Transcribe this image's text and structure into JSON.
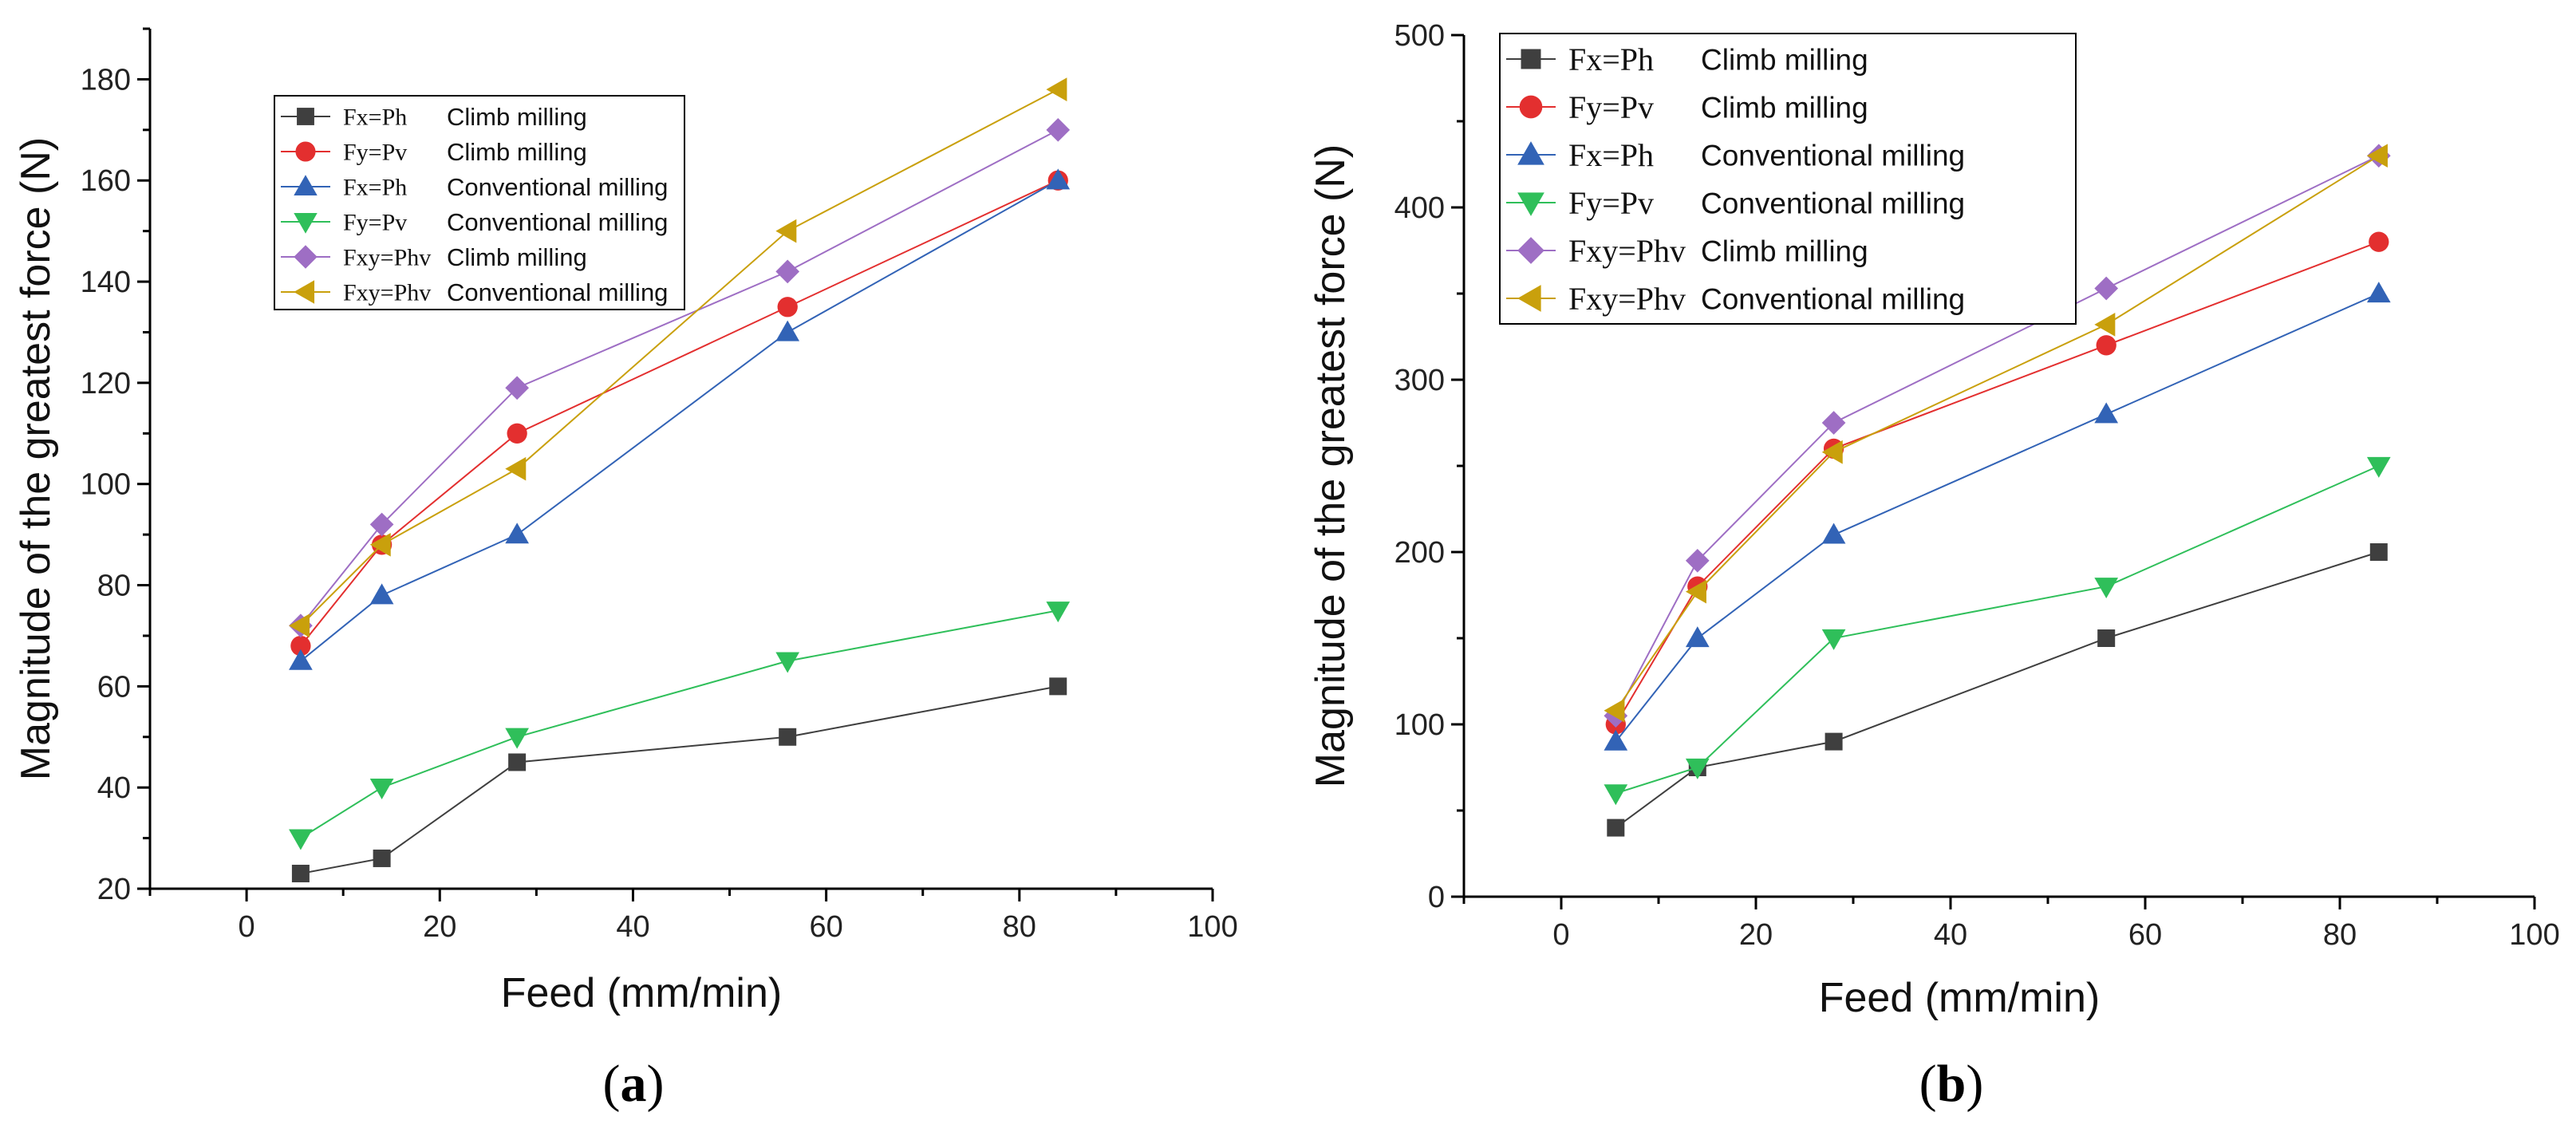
{
  "chart_data": [
    {
      "type": "line",
      "panel_label": "a",
      "xlabel": "Feed (mm/min)",
      "ylabel": "Magnitude of the greatest force  (N)",
      "xlim": [
        -10,
        100
      ],
      "ylim": [
        20,
        190
      ],
      "xticks": [
        0,
        20,
        40,
        60,
        80,
        100
      ],
      "yticks": [
        20,
        40,
        60,
        80,
        100,
        120,
        140,
        160,
        180
      ],
      "x": [
        5.6,
        14,
        28,
        56,
        84
      ],
      "legend_position": "top-left",
      "series": [
        {
          "symbol": "Fx=Ph",
          "description": "Climb milling",
          "color": "#3f3f3f",
          "marker": "square",
          "values": [
            23,
            26,
            45,
            50,
            60
          ]
        },
        {
          "symbol": "Fy=Pv",
          "description": "Climb milling",
          "color": "#e32f2f",
          "marker": "circle",
          "values": [
            68,
            88,
            110,
            135,
            160
          ]
        },
        {
          "symbol": "Fx=Ph",
          "description": "Conventional milling",
          "color": "#3263b6",
          "marker": "triangle-up",
          "values": [
            65,
            78,
            90,
            130,
            160
          ]
        },
        {
          "symbol": "Fy=Pv",
          "description": "Conventional milling",
          "color": "#2fbf5a",
          "marker": "triangle-down",
          "values": [
            30,
            40,
            50,
            65,
            75
          ]
        },
        {
          "symbol": "Fxy=Phv",
          "description": "Climb milling",
          "color": "#9e6ec4",
          "marker": "diamond",
          "values": [
            72,
            92,
            119,
            142,
            170
          ]
        },
        {
          "symbol": "Fxy=Phv",
          "description": "Conventional milling",
          "color": "#c9a00c",
          "marker": "triangle-left",
          "values": [
            72,
            88,
            103,
            150,
            178
          ]
        }
      ]
    },
    {
      "type": "line",
      "panel_label": "b",
      "xlabel": "Feed (mm/min)",
      "ylabel": "Magnitude of the greatest force  (N)",
      "xlim": [
        -10,
        100
      ],
      "ylim": [
        0,
        500
      ],
      "xticks": [
        0,
        20,
        40,
        60,
        80,
        100
      ],
      "yticks": [
        0,
        100,
        200,
        300,
        400,
        500
      ],
      "x": [
        5.6,
        14,
        28,
        56,
        84
      ],
      "legend_position": "top-left",
      "series": [
        {
          "symbol": "Fx=Ph",
          "description": "Climb milling",
          "color": "#3f3f3f",
          "marker": "square",
          "values": [
            40,
            75,
            90,
            150,
            200
          ]
        },
        {
          "symbol": "Fy=Pv",
          "description": "Climb milling",
          "color": "#e32f2f",
          "marker": "circle",
          "values": [
            100,
            180,
            260,
            320,
            380
          ]
        },
        {
          "symbol": "Fx=Ph",
          "description": "Conventional milling",
          "color": "#3263b6",
          "marker": "triangle-up",
          "values": [
            90,
            150,
            210,
            280,
            350
          ]
        },
        {
          "symbol": "Fy=Pv",
          "description": "Conventional milling",
          "color": "#2fbf5a",
          "marker": "triangle-down",
          "values": [
            60,
            75,
            150,
            180,
            250
          ]
        },
        {
          "symbol": "Fxy=Phv",
          "description": "Climb milling",
          "color": "#9e6ec4",
          "marker": "diamond",
          "values": [
            105,
            195,
            275,
            353,
            430
          ]
        },
        {
          "symbol": "Fxy=Phv",
          "description": "Conventional milling",
          "color": "#c9a00c",
          "marker": "triangle-left",
          "values": [
            108,
            177,
            258,
            332,
            430
          ]
        }
      ]
    }
  ]
}
